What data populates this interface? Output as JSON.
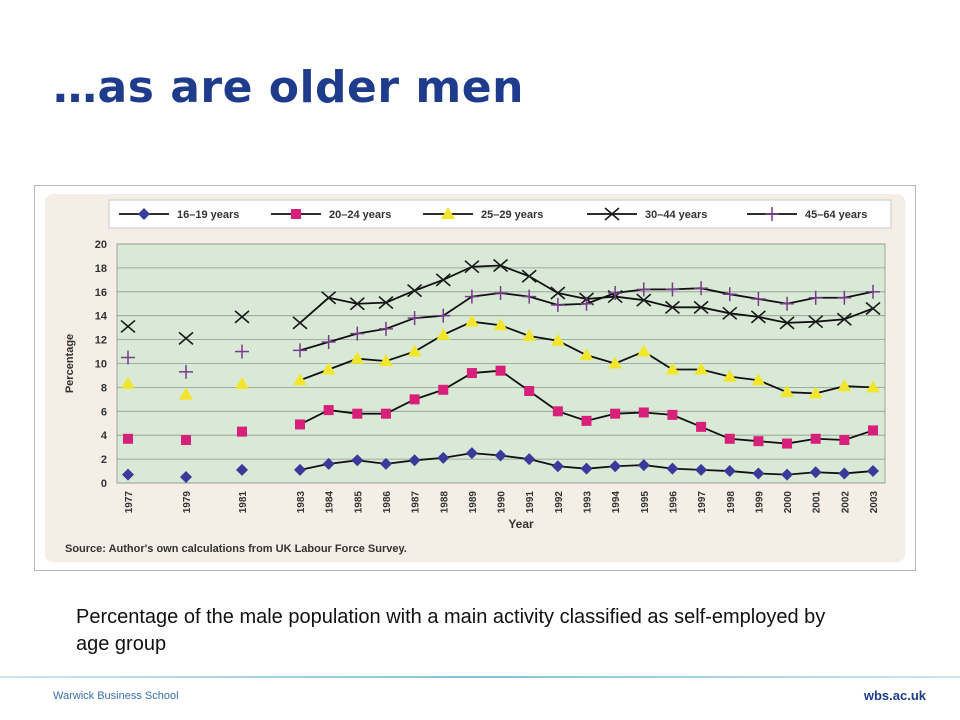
{
  "slide": {
    "title": "…as are older men",
    "caption": "Percentage of the male population with a main activity classified as self-employed by age group",
    "footer_left": "Warwick Business School",
    "footer_right": "wbs.ac.uk"
  },
  "colors": {
    "title": "#1f3c8c",
    "plot_bg": "#d8ead6",
    "outer_bg": "#f4eee6",
    "s16_19": "#3a3a9a",
    "s20_24": "#d81f7a",
    "s25_29": "#f3e52b",
    "s30_44": "#1a1a1a",
    "s45_64": "#7a3a8c"
  },
  "chart_data": {
    "type": "line",
    "ylabel": "Percentage",
    "xlabel": "Year",
    "ylim": [
      0,
      20
    ],
    "yticks": [
      0,
      2,
      4,
      6,
      8,
      10,
      12,
      14,
      16,
      18,
      20
    ],
    "grid": "horizontal",
    "legend_position": "top",
    "source": "Source: Author's own calculations from UK Labour Force Survey.",
    "x": [
      "1977",
      "1979",
      "1981",
      "1983",
      "1984",
      "1985",
      "1986",
      "1987",
      "1988",
      "1989",
      "1990",
      "1991",
      "1992",
      "1993",
      "1994",
      "1995",
      "1996",
      "1997",
      "1998",
      "1999",
      "2000",
      "2001",
      "2002",
      "2003"
    ],
    "series": [
      {
        "name": "16–19 years",
        "marker": "diamond",
        "values": [
          0.7,
          0.5,
          1.1,
          1.1,
          1.6,
          1.9,
          1.6,
          1.9,
          2.1,
          2.5,
          2.3,
          2.0,
          1.4,
          1.2,
          1.4,
          1.5,
          1.2,
          1.1,
          1.0,
          0.8,
          0.7,
          0.9,
          0.8,
          1.0
        ]
      },
      {
        "name": "20–24 years",
        "marker": "square",
        "values": [
          3.7,
          3.6,
          4.3,
          4.9,
          6.1,
          5.8,
          5.8,
          7.0,
          7.8,
          9.2,
          9.4,
          7.7,
          6.0,
          5.2,
          5.8,
          5.9,
          5.7,
          4.7,
          3.7,
          3.5,
          3.3,
          3.7,
          3.6,
          4.4
        ]
      },
      {
        "name": "25–29 years",
        "marker": "triangle",
        "values": [
          8.3,
          7.4,
          8.3,
          8.6,
          9.5,
          10.4,
          10.2,
          11.0,
          12.4,
          13.5,
          13.2,
          12.3,
          11.9,
          10.7,
          10.0,
          11.0,
          9.5,
          9.5,
          8.9,
          8.6,
          7.6,
          7.5,
          8.1,
          8.0
        ]
      },
      {
        "name": "30–44 years",
        "marker": "x",
        "values": [
          13.1,
          12.1,
          13.9,
          13.4,
          15.5,
          15.0,
          15.1,
          16.1,
          17.0,
          18.1,
          18.2,
          17.3,
          15.9,
          15.4,
          15.6,
          15.3,
          14.7,
          14.7,
          14.2,
          13.9,
          13.4,
          13.5,
          13.7,
          14.6
        ]
      },
      {
        "name": "45–64 years",
        "marker": "star",
        "values": [
          10.5,
          9.3,
          11.0,
          11.1,
          11.8,
          12.5,
          12.9,
          13.8,
          14.0,
          15.6,
          15.9,
          15.6,
          14.9,
          15.0,
          15.9,
          16.2,
          16.2,
          16.3,
          15.8,
          15.4,
          15.0,
          15.5,
          15.5,
          16.0
        ]
      }
    ]
  }
}
